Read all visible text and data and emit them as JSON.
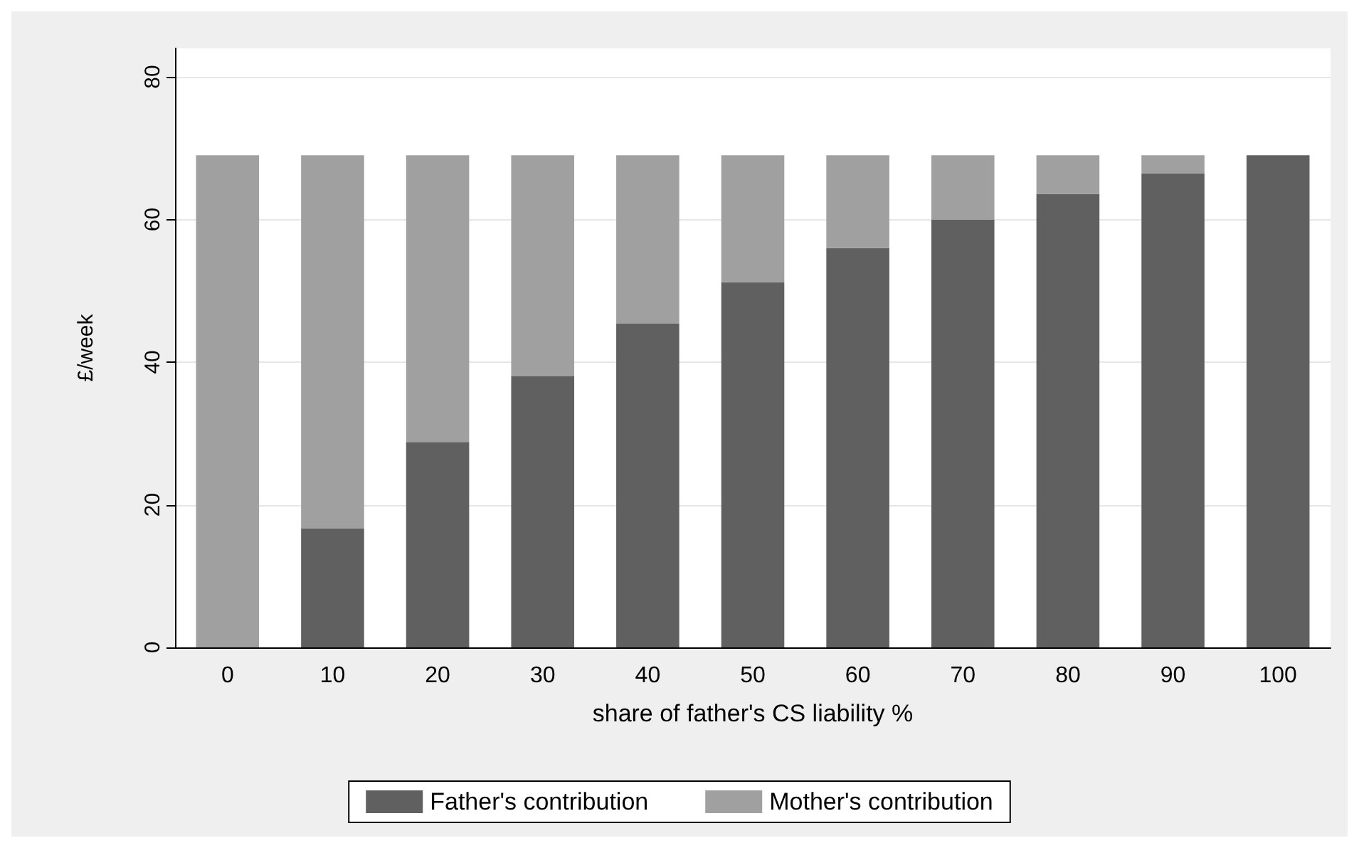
{
  "chart_data": {
    "type": "bar",
    "stacked": true,
    "xlabel": "share of father's CS liability %",
    "ylabel": "£/week",
    "categories": [
      "0",
      "10",
      "20",
      "30",
      "40",
      "50",
      "60",
      "70",
      "80",
      "90",
      "100"
    ],
    "series": [
      {
        "name": "Father's contribution",
        "color": "#606060",
        "values": [
          0,
          16.7,
          28.8,
          38,
          45.4,
          51.2,
          56,
          60,
          63.6,
          66.5,
          69
        ]
      },
      {
        "name": "Mother's contribution",
        "color": "#a0a0a0",
        "values": [
          69,
          52.3,
          40.2,
          31,
          23.6,
          17.8,
          13,
          9,
          5.4,
          2.5,
          0
        ]
      }
    ],
    "ylim": [
      0,
      84
    ],
    "yticks": [
      0,
      20,
      40,
      60,
      80
    ],
    "grid": "y",
    "legend": "bottom"
  }
}
